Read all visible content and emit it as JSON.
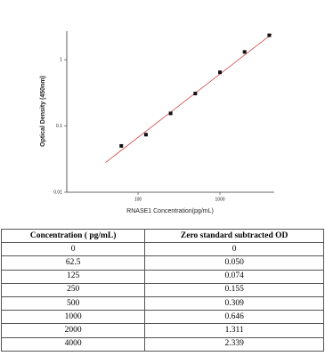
{
  "chart_data": {
    "type": "scatter",
    "x_label": "RNASE1  Concentration(pg/mL)",
    "y_label": "Optical Density (450nm)",
    "x": [
      62.5,
      125,
      250,
      500,
      1000,
      2000,
      4000
    ],
    "y": [
      0.05,
      0.074,
      0.155,
      0.309,
      0.646,
      1.311,
      2.339
    ],
    "color": "#111111",
    "fit": {
      "color": "#d04848",
      "x": [
        40,
        4300
      ],
      "y": [
        0.028,
        2.45
      ]
    },
    "xscale": "log",
    "yscale": "log",
    "xlim": [
      13.5,
      4600
    ],
    "ylim": [
      0.01,
      2.7
    ],
    "xticks": [
      100,
      1000
    ],
    "yticks": [
      0.01,
      0.1,
      1
    ]
  },
  "table": {
    "header": [
      "Concentration ( pg/mL)",
      "Zero standard subtracted OD"
    ],
    "rows": [
      [
        "0",
        "0"
      ],
      [
        "62.5",
        "0.050"
      ],
      [
        "125",
        "0.074"
      ],
      [
        "250",
        "0.155"
      ],
      [
        "500",
        "0.309"
      ],
      [
        "1000",
        "0.646"
      ],
      [
        "2000",
        "1.311"
      ],
      [
        "4000",
        "2.339"
      ]
    ]
  }
}
